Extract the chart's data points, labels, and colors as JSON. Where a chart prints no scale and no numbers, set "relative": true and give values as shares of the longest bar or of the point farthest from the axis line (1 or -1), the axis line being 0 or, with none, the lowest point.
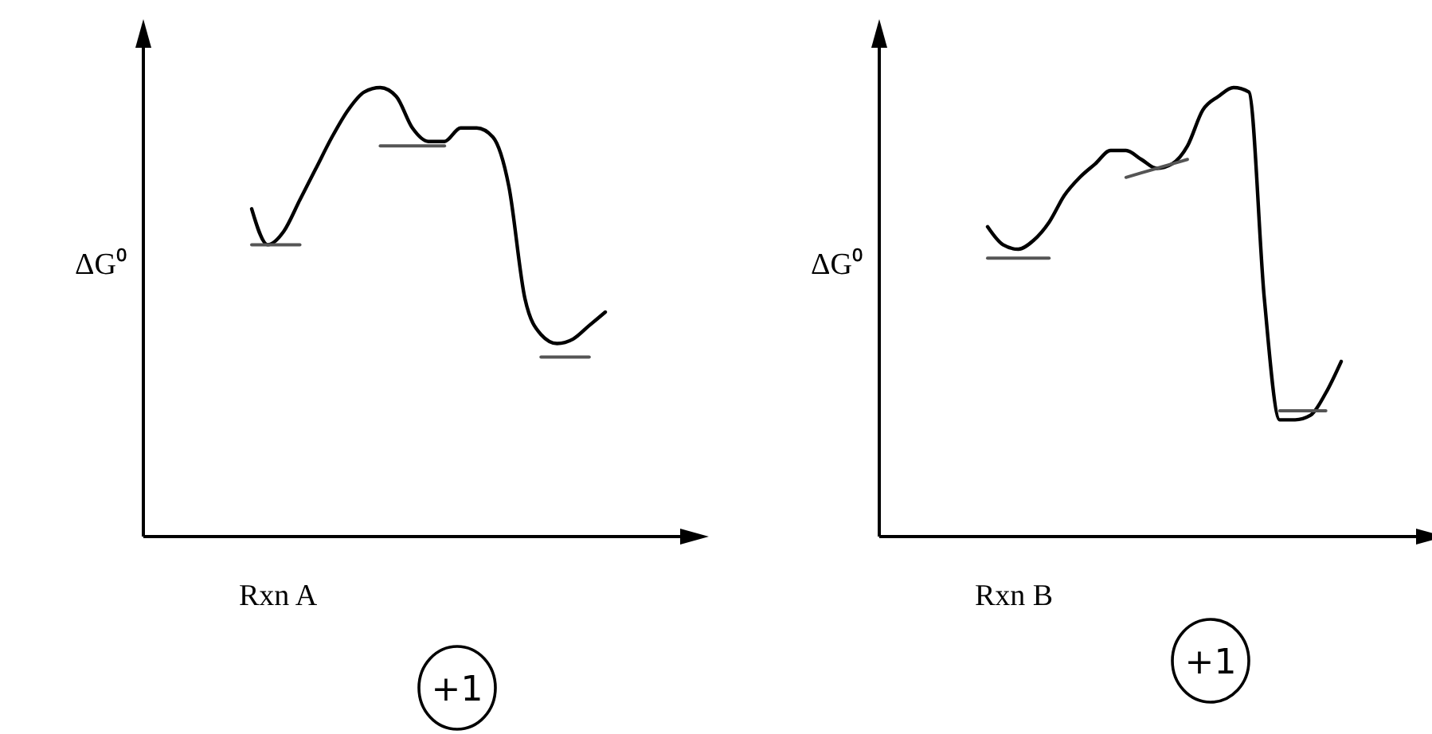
{
  "chart_data": [
    {
      "type": "line",
      "relative": true,
      "ylabel": "ΔG⁰",
      "xlabel": "Rxn A",
      "annotations": [
        "+1"
      ],
      "line_style": "solid",
      "marker": "none",
      "categories": [
        null,
        null,
        null,
        null,
        null,
        null,
        null,
        null,
        null,
        null,
        null,
        null,
        null,
        null,
        null,
        null,
        null,
        null,
        null,
        null,
        null,
        null,
        null
      ],
      "series": [
        {
          "color": "#000000",
          "values": [
            0.73,
            0.65,
            0.68,
            0.75,
            0.82,
            0.89,
            0.95,
            0.99,
            1.0,
            0.98,
            0.91,
            0.88,
            0.88,
            0.91,
            0.91,
            0.89,
            0.78,
            0.53,
            0.45,
            0.43,
            0.44,
            0.47,
            0.5
          ]
        },
        {
          "color": "#555555",
          "values": [
            0.65,
            0.65,
            0.65,
            0.65,
            null,
            null,
            null,
            null,
            null,
            null,
            null,
            null,
            null,
            null,
            null,
            null,
            null,
            null,
            null,
            null,
            null,
            null,
            null
          ]
        },
        {
          "color": "#555555",
          "values": [
            null,
            null,
            null,
            null,
            null,
            null,
            null,
            null,
            0.87,
            0.87,
            0.87,
            0.87,
            0.87,
            null,
            null,
            null,
            null,
            null,
            null,
            null,
            null,
            null,
            null
          ]
        },
        {
          "color": "#555555",
          "values": [
            null,
            null,
            null,
            null,
            null,
            null,
            null,
            null,
            null,
            null,
            null,
            null,
            null,
            null,
            null,
            null,
            null,
            null,
            0.4,
            0.4,
            0.4,
            0.4,
            null
          ]
        }
      ]
    },
    {
      "type": "line",
      "relative": true,
      "ylabel": "ΔG⁰",
      "xlabel": "Rxn B",
      "annotations": [
        "+1"
      ],
      "line_style": "solid",
      "marker": "none",
      "categories": [
        null,
        null,
        null,
        null,
        null,
        null,
        null,
        null,
        null,
        null,
        null,
        null,
        null,
        null,
        null,
        null,
        null,
        null,
        null,
        null,
        null,
        null,
        null,
        null
      ],
      "series": [
        {
          "color": "#000000",
          "values": [
            0.69,
            0.65,
            0.64,
            0.66,
            0.7,
            0.76,
            0.8,
            0.83,
            0.86,
            0.86,
            0.84,
            0.82,
            0.83,
            0.87,
            0.95,
            0.98,
            1.0,
            0.99,
            0.53,
            0.26,
            0.26,
            0.27,
            0.32,
            0.39
          ]
        },
        {
          "color": "#555555",
          "values": [
            0.62,
            0.62,
            0.62,
            0.62,
            0.62,
            null,
            null,
            null,
            null,
            null,
            null,
            null,
            null,
            null,
            null,
            null,
            null,
            null,
            null,
            null,
            null,
            null,
            null,
            null
          ]
        },
        {
          "color": "#555555",
          "values": [
            null,
            null,
            null,
            null,
            null,
            null,
            null,
            null,
            null,
            0.8,
            0.81,
            0.82,
            0.83,
            0.84,
            null,
            null,
            null,
            null,
            null,
            null,
            null,
            null,
            null,
            null
          ]
        },
        {
          "color": "#555555",
          "values": [
            null,
            null,
            null,
            null,
            null,
            null,
            null,
            null,
            null,
            null,
            null,
            null,
            null,
            null,
            null,
            null,
            null,
            null,
            null,
            0.28,
            0.28,
            0.28,
            0.28,
            null
          ]
        }
      ]
    }
  ]
}
